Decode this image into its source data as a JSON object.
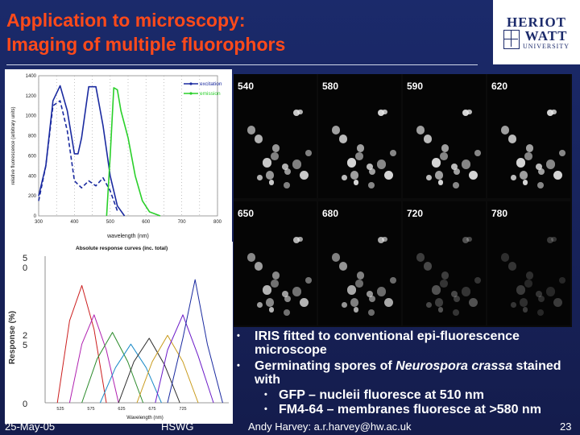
{
  "slide": {
    "title_line1": "Application to microscopy:",
    "title_line2": "Imaging of multiple fluorophors",
    "logo": {
      "line1": "HERIOT",
      "line2": "WATT",
      "line3": "UNIVERSITY"
    },
    "footer_date": "25-May-05",
    "footer_center": "HSWG",
    "footer_author": "Andy Harvey: a.r.harvey@hw.ac.uk",
    "slide_number": "23",
    "bullets": [
      "IRIS fitted to conventional epi-fluorescence microscope",
      {
        "pre": "Germinating spores of ",
        "italic": "Neurospora crassa",
        "post": " stained with"
      }
    ],
    "sub_bullets": [
      "GFP – nucleii fluoresce at 510 nm",
      "FM4-64 – membranes fluoresce at >580 nm"
    ]
  },
  "micrograph": {
    "wavelength_labels": [
      "540",
      "580",
      "590",
      "620",
      "650",
      "680",
      "720",
      "780"
    ]
  },
  "chart_data": [
    {
      "type": "line",
      "title": "",
      "xlabel": "wavelength (nm)",
      "ylabel": "relative fluorescence (arbitrary units)",
      "xlim": [
        300,
        800
      ],
      "ylim": [
        0,
        1400
      ],
      "xticks": [
        "300",
        "350",
        "400",
        "450",
        "500",
        "550",
        "600",
        "650",
        "700",
        "750",
        "800"
      ],
      "yticks": [
        "0",
        "200",
        "400",
        "600",
        "800",
        "1000",
        "1200",
        "1400"
      ],
      "legend": "top-right",
      "series": [
        {
          "name": "excitation",
          "color": "#1a2aa0",
          "dashed": false,
          "x": [
            300,
            320,
            340,
            360,
            380,
            400,
            410,
            420,
            440,
            460,
            480,
            500,
            520,
            540
          ],
          "y": [
            200,
            500,
            1150,
            1300,
            1050,
            620,
            620,
            780,
            1290,
            1290,
            900,
            400,
            100,
            0
          ]
        },
        {
          "name": "",
          "color": "#1a2aa0",
          "dashed": true,
          "x": [
            300,
            320,
            340,
            360,
            380,
            400,
            420,
            440,
            460,
            480,
            500,
            520
          ],
          "y": [
            150,
            500,
            1100,
            1150,
            850,
            350,
            280,
            350,
            300,
            380,
            250,
            50
          ]
        },
        {
          "name": "emission",
          "color": "#2ad02a",
          "dashed": false,
          "x": [
            490,
            500,
            510,
            520,
            530,
            550,
            570,
            590,
            610,
            640
          ],
          "y": [
            0,
            600,
            1280,
            1260,
            1050,
            780,
            400,
            150,
            40,
            0
          ]
        }
      ]
    },
    {
      "type": "line",
      "title": "Absolute response curves (inc. total)",
      "xlabel": "Wavelength (nm)",
      "ylabel": "Response (%)",
      "xlim": [
        500,
        800
      ],
      "ylim": [
        0,
        50
      ],
      "yticks": [
        "0",
        "25",
        "50"
      ],
      "xticks": [
        "525",
        "575",
        "625",
        "675",
        "725"
      ],
      "grid": false,
      "series": [
        {
          "color": "#cc1f1f",
          "x": [
            520,
            540,
            560,
            580,
            600
          ],
          "y": [
            0,
            28,
            40,
            25,
            0
          ]
        },
        {
          "color": "#b020b0",
          "x": [
            540,
            560,
            580,
            600,
            620
          ],
          "y": [
            0,
            20,
            30,
            18,
            0
          ]
        },
        {
          "color": "#2a8a2a",
          "x": [
            560,
            585,
            610,
            635,
            660
          ],
          "y": [
            0,
            15,
            24,
            14,
            0
          ]
        },
        {
          "color": "#1a8ac8",
          "x": [
            590,
            615,
            640,
            665,
            690
          ],
          "y": [
            0,
            12,
            20,
            12,
            0
          ]
        },
        {
          "color": "#2a2a2a",
          "x": [
            620,
            645,
            670,
            695,
            720
          ],
          "y": [
            0,
            14,
            22,
            13,
            0
          ]
        },
        {
          "color": "#c89a1a",
          "x": [
            650,
            675,
            700,
            725,
            750
          ],
          "y": [
            0,
            14,
            23,
            14,
            0
          ]
        },
        {
          "color": "#6a1ac8",
          "x": [
            680,
            700,
            725,
            750,
            775
          ],
          "y": [
            0,
            18,
            30,
            16,
            0
          ]
        },
        {
          "color": "#1a2aa0",
          "x": [
            700,
            725,
            745,
            765,
            790
          ],
          "y": [
            0,
            22,
            42,
            20,
            0
          ]
        }
      ]
    }
  ]
}
